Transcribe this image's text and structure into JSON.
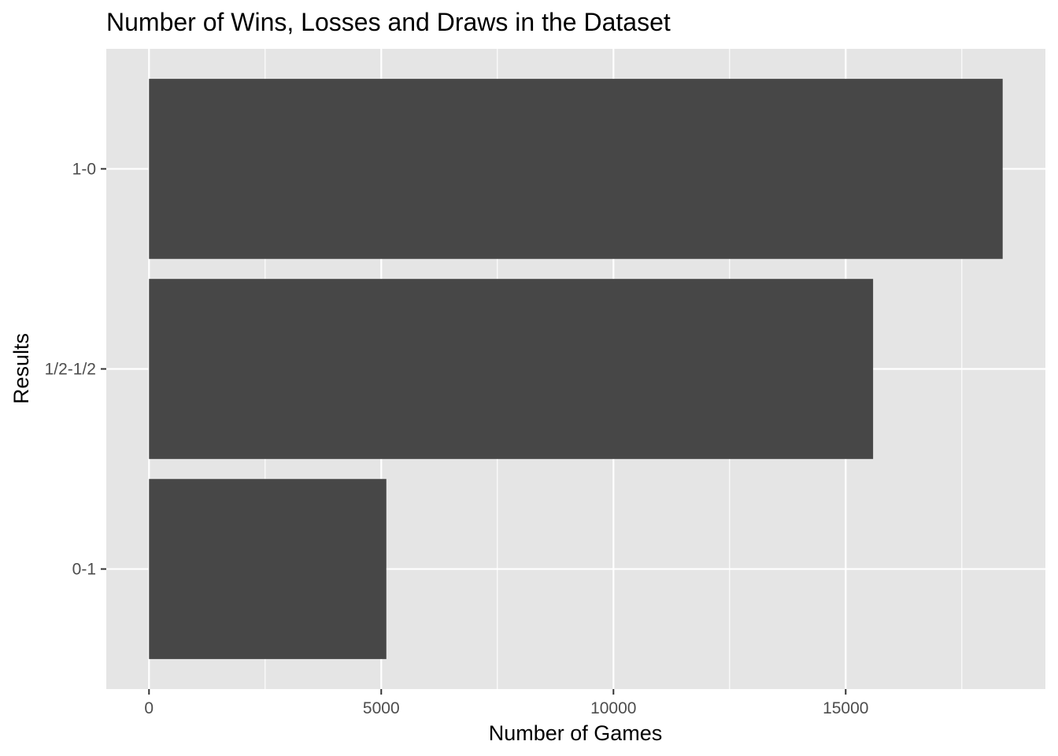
{
  "chart_data": {
    "type": "bar",
    "orientation": "horizontal",
    "title": "Number of Wins, Losses and Draws in the Dataset",
    "xlabel": "Number of Games",
    "ylabel": "Results",
    "categories": [
      "1-0",
      "1/2-1/2",
      "0-1"
    ],
    "values": [
      18380,
      15590,
      5110
    ],
    "xlim": [
      -920,
      19300
    ],
    "xticks": [
      0,
      5000,
      10000,
      15000
    ],
    "xtick_labels": [
      "0",
      "5000",
      "10000",
      "15000"
    ],
    "minor_xticks": [
      2500,
      7500,
      12500,
      17500
    ],
    "grid": true,
    "legend": "none"
  },
  "colors": {
    "panel_background": "#e5e5e5",
    "grid_major": "#ffffff",
    "bar_fill": "#474747",
    "tick_mark": "#333333",
    "page_background": "#ffffff"
  }
}
